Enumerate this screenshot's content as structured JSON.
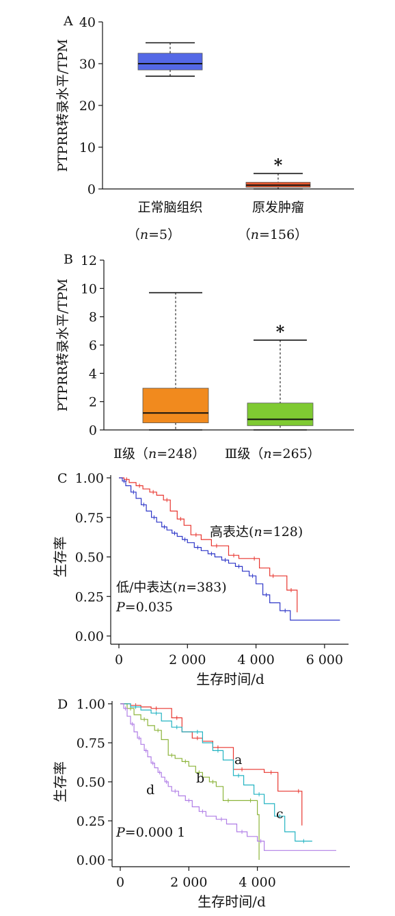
{
  "chart_data": [
    {
      "panel": "A",
      "type": "box",
      "ylabel": "PTPRR转录水平/TPM",
      "ylim": [
        0,
        40
      ],
      "yticks": [
        0,
        10,
        20,
        30,
        40
      ],
      "grid": false,
      "categories": [
        "正常脑组织",
        "原发肿瘤"
      ],
      "counts": [
        "(n=5)",
        "(n=156)"
      ],
      "boxes": [
        {
          "whisker_low": 27,
          "q1": 28.5,
          "median": 30,
          "q3": 32.5,
          "whisker_high": 35,
          "color": "#5468e6"
        },
        {
          "whisker_low": 0,
          "q1": 0.4,
          "median": 0.9,
          "q3": 1.6,
          "whisker_high": 3.7,
          "color": "#e85a30"
        }
      ],
      "annotations": [
        {
          "category": 1,
          "text": "*"
        }
      ]
    },
    {
      "panel": "B",
      "type": "box",
      "ylabel": "PTPRR转录水平/TPM",
      "ylim": [
        0,
        12
      ],
      "yticks": [
        0,
        2,
        4,
        6,
        8,
        10,
        12
      ],
      "grid": false,
      "categories": [
        "Ⅱ级",
        "Ⅲ级"
      ],
      "counts": [
        "(n=248)",
        "(n=265)"
      ],
      "boxes": [
        {
          "whisker_low": 0,
          "q1": 0.5,
          "median": 1.2,
          "q3": 2.95,
          "whisker_high": 9.7,
          "color": "#f18a1e"
        },
        {
          "whisker_low": 0,
          "q1": 0.3,
          "median": 0.75,
          "q3": 1.9,
          "whisker_high": 6.35,
          "color": "#7fca32"
        }
      ],
      "annotations": [
        {
          "category": 1,
          "text": "*"
        }
      ]
    },
    {
      "panel": "C",
      "type": "line",
      "xlabel": "生存时间/d",
      "ylabel": "生存率",
      "xlim": [
        0,
        6500
      ],
      "ylim": [
        0,
        1
      ],
      "xticks": [
        0,
        2000,
        4000,
        6000
      ],
      "xtick_labels": [
        "0",
        "2 000",
        "4 000",
        "6 000"
      ],
      "yticks": [
        0,
        0.25,
        0.5,
        0.75,
        1.0
      ],
      "ytick_labels": [
        "0.00",
        "0.25",
        "0.50",
        "0.75",
        "1.00"
      ],
      "pvalue": "P=0.035",
      "series": [
        {
          "label": "高表达",
          "count": "(n=128)",
          "color": "#e8352e",
          "x": [
            0,
            150,
            300,
            500,
            700,
            900,
            1100,
            1300,
            1500,
            1700,
            1900,
            2100,
            2400,
            2700,
            3000,
            3200,
            3500,
            3800,
            4100,
            4400,
            4600,
            4900,
            5150,
            5200
          ],
          "y": [
            1.0,
            0.99,
            0.97,
            0.95,
            0.93,
            0.91,
            0.89,
            0.86,
            0.79,
            0.74,
            0.7,
            0.64,
            0.61,
            0.57,
            0.57,
            0.51,
            0.49,
            0.49,
            0.43,
            0.38,
            0.38,
            0.29,
            0.29,
            0.15
          ]
        },
        {
          "label": "低/中表达",
          "count": "(n=383)",
          "color": "#2d36c8",
          "x": [
            0,
            100,
            200,
            350,
            500,
            650,
            800,
            950,
            1100,
            1250,
            1400,
            1550,
            1700,
            1850,
            2000,
            2200,
            2400,
            2600,
            2800,
            3000,
            3200,
            3400,
            3600,
            3800,
            4000,
            4200,
            4400,
            4700,
            5000,
            6450
          ],
          "y": [
            1.0,
            0.98,
            0.95,
            0.91,
            0.87,
            0.83,
            0.79,
            0.75,
            0.72,
            0.69,
            0.67,
            0.65,
            0.63,
            0.61,
            0.59,
            0.56,
            0.54,
            0.52,
            0.5,
            0.48,
            0.46,
            0.44,
            0.41,
            0.38,
            0.33,
            0.26,
            0.21,
            0.16,
            0.1,
            0.1
          ]
        }
      ]
    },
    {
      "panel": "D",
      "type": "line",
      "xlabel": "生存时间/d",
      "ylabel": "生存率",
      "xlim": [
        0,
        6500
      ],
      "ylim": [
        0,
        1
      ],
      "xticks": [
        0,
        2000,
        4000
      ],
      "xtick_labels": [
        "0",
        "2 000",
        "4 000"
      ],
      "yticks": [
        0,
        0.25,
        0.5,
        0.75,
        1.0
      ],
      "ytick_labels": [
        "0.00",
        "0.25",
        "0.50",
        "0.75",
        "1.00"
      ],
      "pvalue": "P=0.000 1",
      "series": [
        {
          "label": "a",
          "color": "#e8352e",
          "x": [
            0,
            300,
            600,
            900,
            1200,
            1500,
            1800,
            2100,
            2400,
            2700,
            3000,
            3300,
            3800,
            4200,
            4600,
            5100,
            5300
          ],
          "y": [
            1.0,
            0.99,
            0.98,
            0.97,
            0.97,
            0.91,
            0.82,
            0.78,
            0.76,
            0.72,
            0.72,
            0.58,
            0.58,
            0.56,
            0.44,
            0.44,
            0.22
          ]
        },
        {
          "label": "b",
          "color": "#8cb43a",
          "x": [
            0,
            200,
            400,
            600,
            800,
            1000,
            1200,
            1400,
            1600,
            1800,
            2000,
            2200,
            2400,
            2600,
            2800,
            3000,
            3300,
            3600,
            4000,
            4050
          ],
          "y": [
            1.0,
            0.97,
            0.93,
            0.9,
            0.86,
            0.83,
            0.77,
            0.67,
            0.65,
            0.63,
            0.6,
            0.56,
            0.53,
            0.5,
            0.47,
            0.38,
            0.38,
            0.38,
            0.29,
            0.0
          ]
        },
        {
          "label": "c",
          "color": "#22b3c2",
          "x": [
            0,
            300,
            600,
            900,
            1200,
            1500,
            1800,
            2100,
            2400,
            2700,
            3000,
            3300,
            3600,
            3900,
            4200,
            4500,
            4800,
            5100,
            5600
          ],
          "y": [
            1.0,
            0.98,
            0.96,
            0.94,
            0.89,
            0.85,
            0.82,
            0.82,
            0.75,
            0.7,
            0.64,
            0.54,
            0.48,
            0.42,
            0.36,
            0.28,
            0.18,
            0.12,
            0.12
          ]
        },
        {
          "label": "d",
          "color": "#b07ee6",
          "x": [
            0,
            100,
            200,
            300,
            400,
            500,
            600,
            700,
            800,
            900,
            1000,
            1100,
            1200,
            1300,
            1400,
            1500,
            1700,
            1900,
            2100,
            2300,
            2500,
            2800,
            3100,
            3400,
            3700,
            4000,
            4200,
            6300
          ],
          "y": [
            1.0,
            0.97,
            0.92,
            0.87,
            0.82,
            0.78,
            0.74,
            0.7,
            0.66,
            0.62,
            0.59,
            0.56,
            0.53,
            0.5,
            0.47,
            0.44,
            0.41,
            0.38,
            0.34,
            0.31,
            0.28,
            0.26,
            0.23,
            0.18,
            0.15,
            0.12,
            0.06,
            0.06
          ]
        }
      ]
    }
  ],
  "panel_labels": [
    "A",
    "B",
    "C",
    "D"
  ]
}
